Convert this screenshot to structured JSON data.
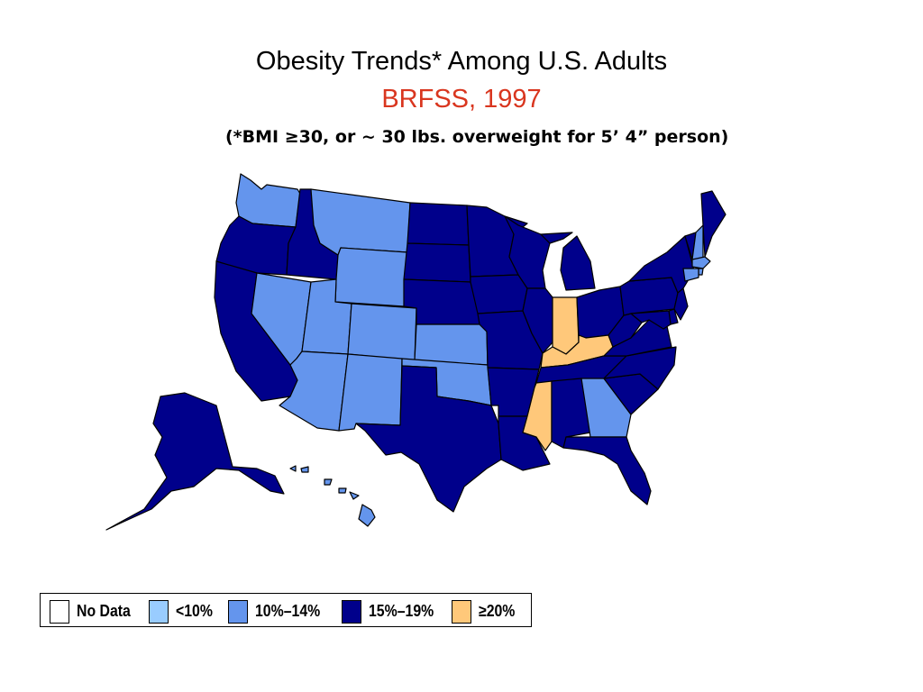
{
  "title": "Obesity Trends* Among U.S. Adults",
  "subtitle": "BRFSS, 1997",
  "note": "(*BMI ≥30, or ~ 30 lbs. overweight for 5’ 4” person)",
  "legend": [
    {
      "key": "nodata",
      "label": "No Data",
      "color": "#ffffff"
    },
    {
      "key": "lt10",
      "label": "<10%",
      "color": "#99ccff"
    },
    {
      "key": "r10_14",
      "label": "10%–14%",
      "color": "#6495ed"
    },
    {
      "key": "r15_19",
      "label": "15%–19%",
      "color": "#00008b"
    },
    {
      "key": "ge20",
      "label": "≥20%",
      "color": "#ffc87a"
    }
  ],
  "states": {
    "WA": "r10_14",
    "OR": "r15_19",
    "CA": "r15_19",
    "ID": "r15_19",
    "NV": "r10_14",
    "MT": "r10_14",
    "WY": "r10_14",
    "UT": "r10_14",
    "AZ": "r10_14",
    "CO": "r10_14",
    "NM": "r10_14",
    "ND": "r15_19",
    "SD": "r15_19",
    "NE": "r15_19",
    "KS": "r10_14",
    "OK": "r10_14",
    "TX": "r15_19",
    "MN": "r15_19",
    "IA": "r15_19",
    "MO": "r15_19",
    "AR": "r15_19",
    "LA": "r15_19",
    "WI": "r15_19",
    "IL": "r15_19",
    "MI": "r15_19",
    "IN": "ge20",
    "KY": "ge20",
    "MS": "ge20",
    "TN": "r15_19",
    "AL": "r15_19",
    "GA": "r10_14",
    "FL": "r15_19",
    "SC": "r15_19",
    "NC": "r15_19",
    "VA": "r15_19",
    "WV": "r15_19",
    "OH": "r15_19",
    "PA": "r15_19",
    "NY": "r15_19",
    "VT": "r15_19",
    "NH": "r10_14",
    "ME": "r15_19",
    "MA": "r10_14",
    "RI": "r10_14",
    "CT": "r10_14",
    "NJ": "r15_19",
    "DE": "r15_19",
    "MD": "r15_19",
    "AK": "r15_19",
    "HI": "r10_14"
  }
}
